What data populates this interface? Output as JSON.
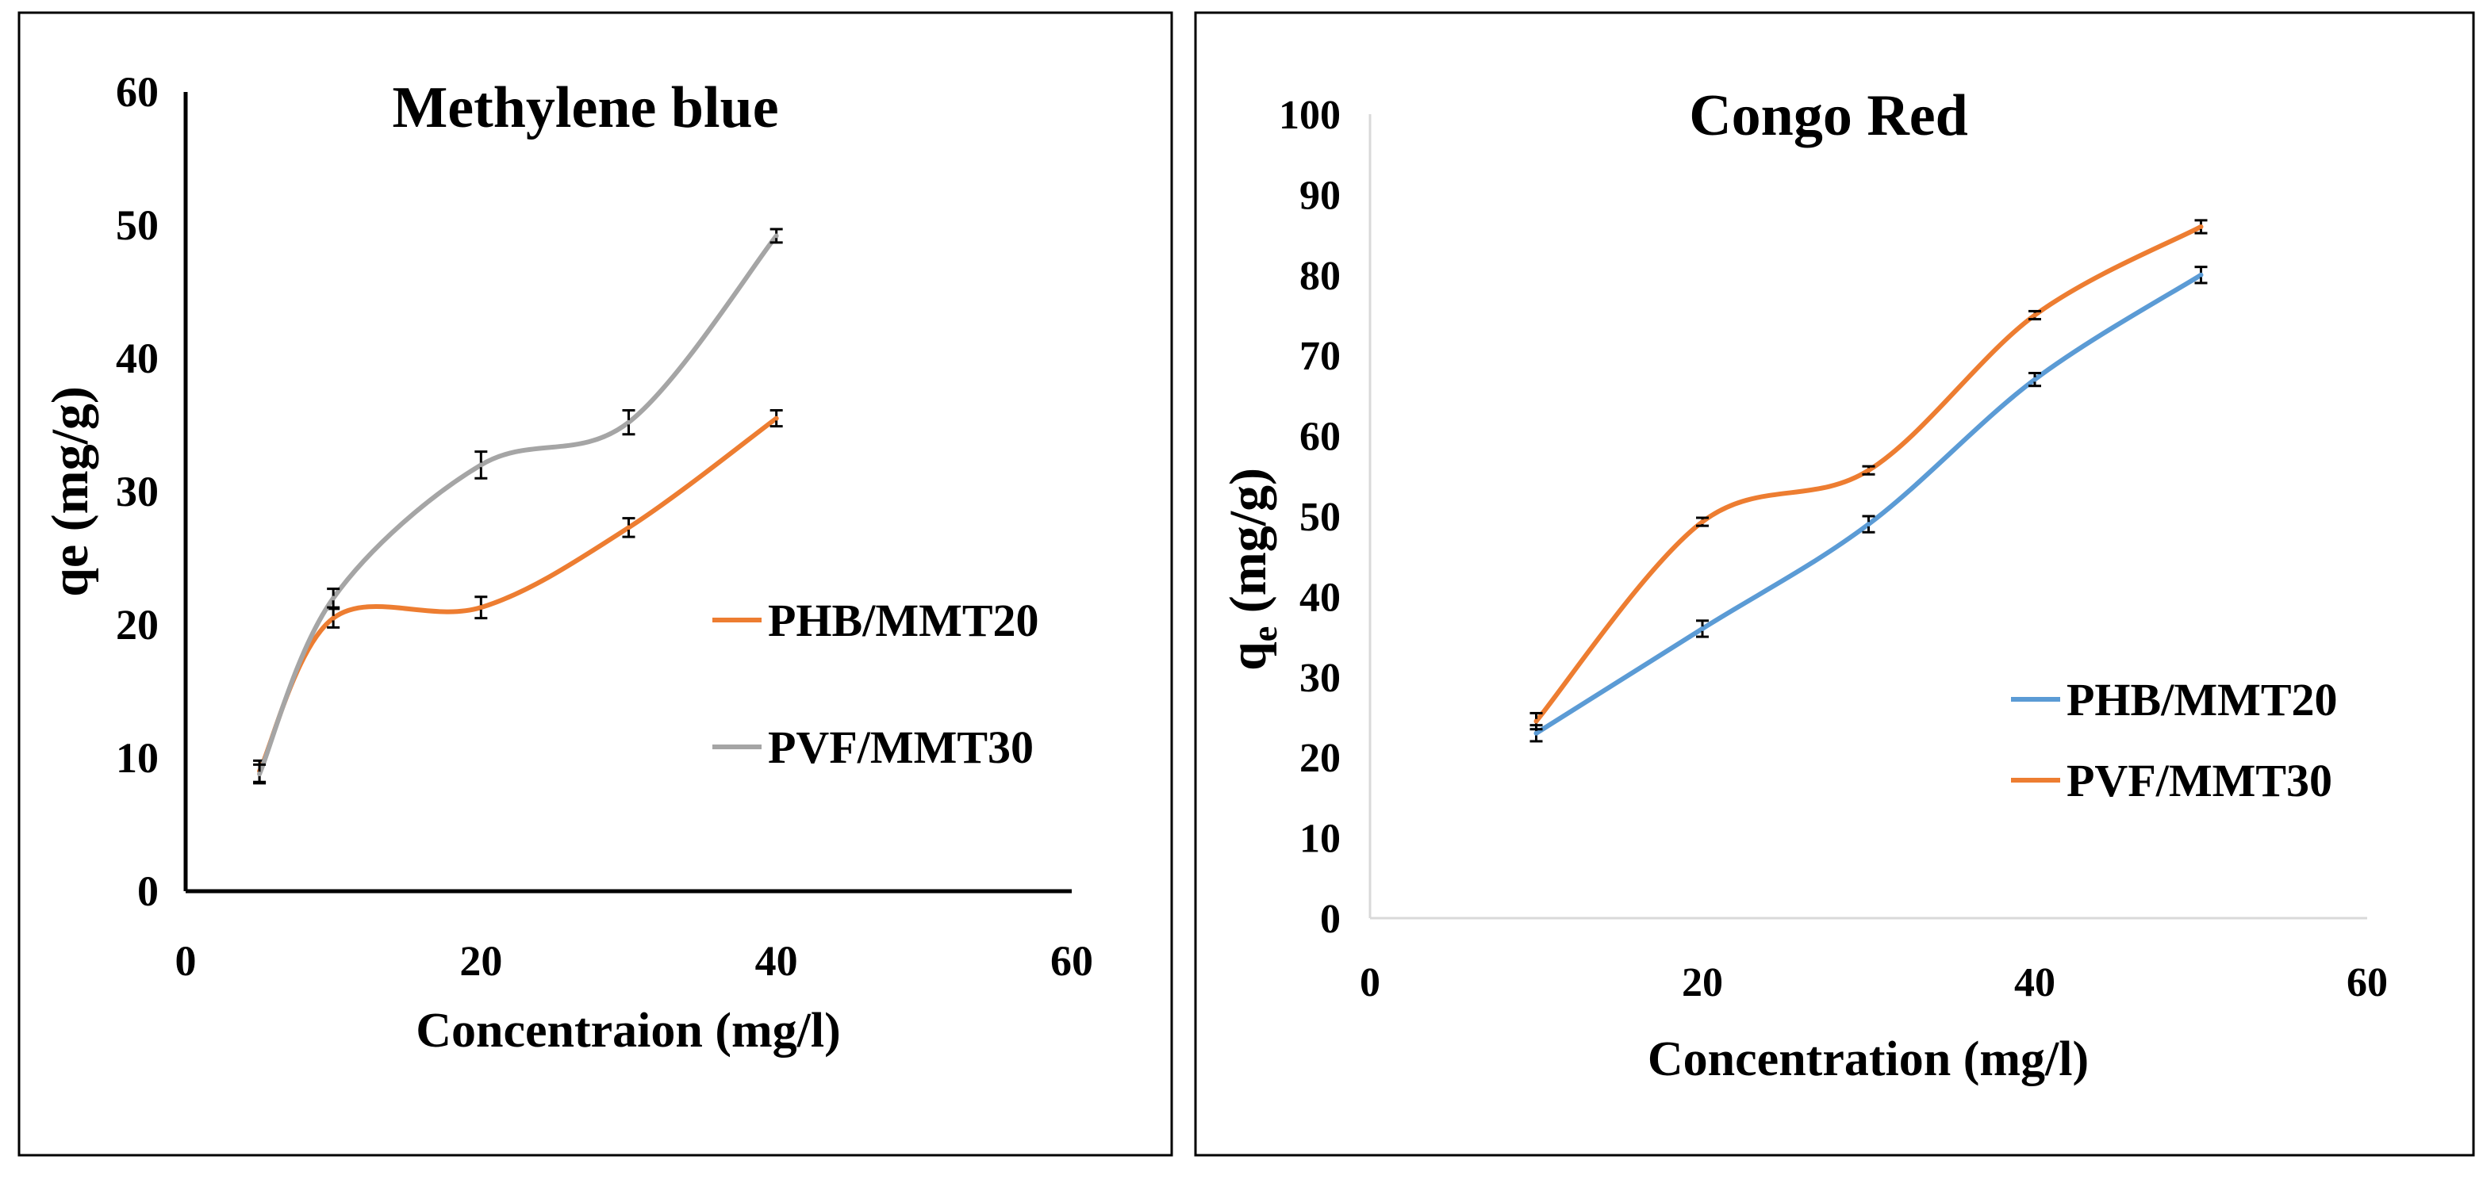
{
  "chart_data": [
    {
      "type": "line",
      "title": "Methylene blue",
      "xlabel": "Concentraion (mg/l)",
      "ylabel": "qe (mg/g)",
      "ylabel_sub": "",
      "xlim": [
        0,
        60
      ],
      "ylim": [
        0,
        60
      ],
      "xticks": [
        "0",
        "20",
        "40",
        "60"
      ],
      "yticks": [
        "0",
        "10",
        "20",
        "30",
        "40",
        "50",
        "60"
      ],
      "grid": false,
      "legend_position": "right",
      "axis_color": "#000000",
      "series": [
        {
          "name": "PHB/MMT20",
          "color": "#ED7D31",
          "x": [
            5,
            10,
            20,
            30,
            40
          ],
          "y": [
            9.0,
            20.5,
            21.3,
            27.3,
            35.5
          ],
          "err": [
            0.8,
            0.7,
            0.8,
            0.7,
            0.6
          ]
        },
        {
          "name": "PVF/MMT30",
          "color": "#A5A5A5",
          "x": [
            5,
            10,
            20,
            30,
            40
          ],
          "y": [
            8.8,
            22.0,
            32.0,
            35.2,
            49.2
          ],
          "err": [
            0.7,
            0.7,
            1.0,
            0.9,
            0.5
          ]
        }
      ]
    },
    {
      "type": "line",
      "title": "Congo Red",
      "xlabel": "Concentration (mg/l)",
      "ylabel": "q",
      "ylabel_sub": "e",
      "ylabel_rest": " (mg/g)",
      "xlim": [
        0,
        60
      ],
      "ylim": [
        0,
        100
      ],
      "xticks": [
        "0",
        "20",
        "40",
        "60"
      ],
      "yticks": [
        "0",
        "10",
        "20",
        "30",
        "40",
        "50",
        "60",
        "70",
        "80",
        "90",
        "100"
      ],
      "grid": false,
      "legend_position": "right",
      "axis_color": "#D9D9D9",
      "series": [
        {
          "name": "PHB/MMT20",
          "color": "#5B9BD5",
          "x": [
            10,
            20,
            30,
            40,
            50
          ],
          "y": [
            23.0,
            36.0,
            49.0,
            67.0,
            80.0
          ],
          "err": [
            1.0,
            1.0,
            1.0,
            0.8,
            1.0
          ]
        },
        {
          "name": "PVF/MMT30",
          "color": "#ED7D31",
          "x": [
            10,
            20,
            30,
            40,
            50
          ],
          "y": [
            24.5,
            49.3,
            55.7,
            75.0,
            86.0
          ],
          "err": [
            1.0,
            0.5,
            0.5,
            0.5,
            0.8
          ]
        }
      ]
    }
  ]
}
